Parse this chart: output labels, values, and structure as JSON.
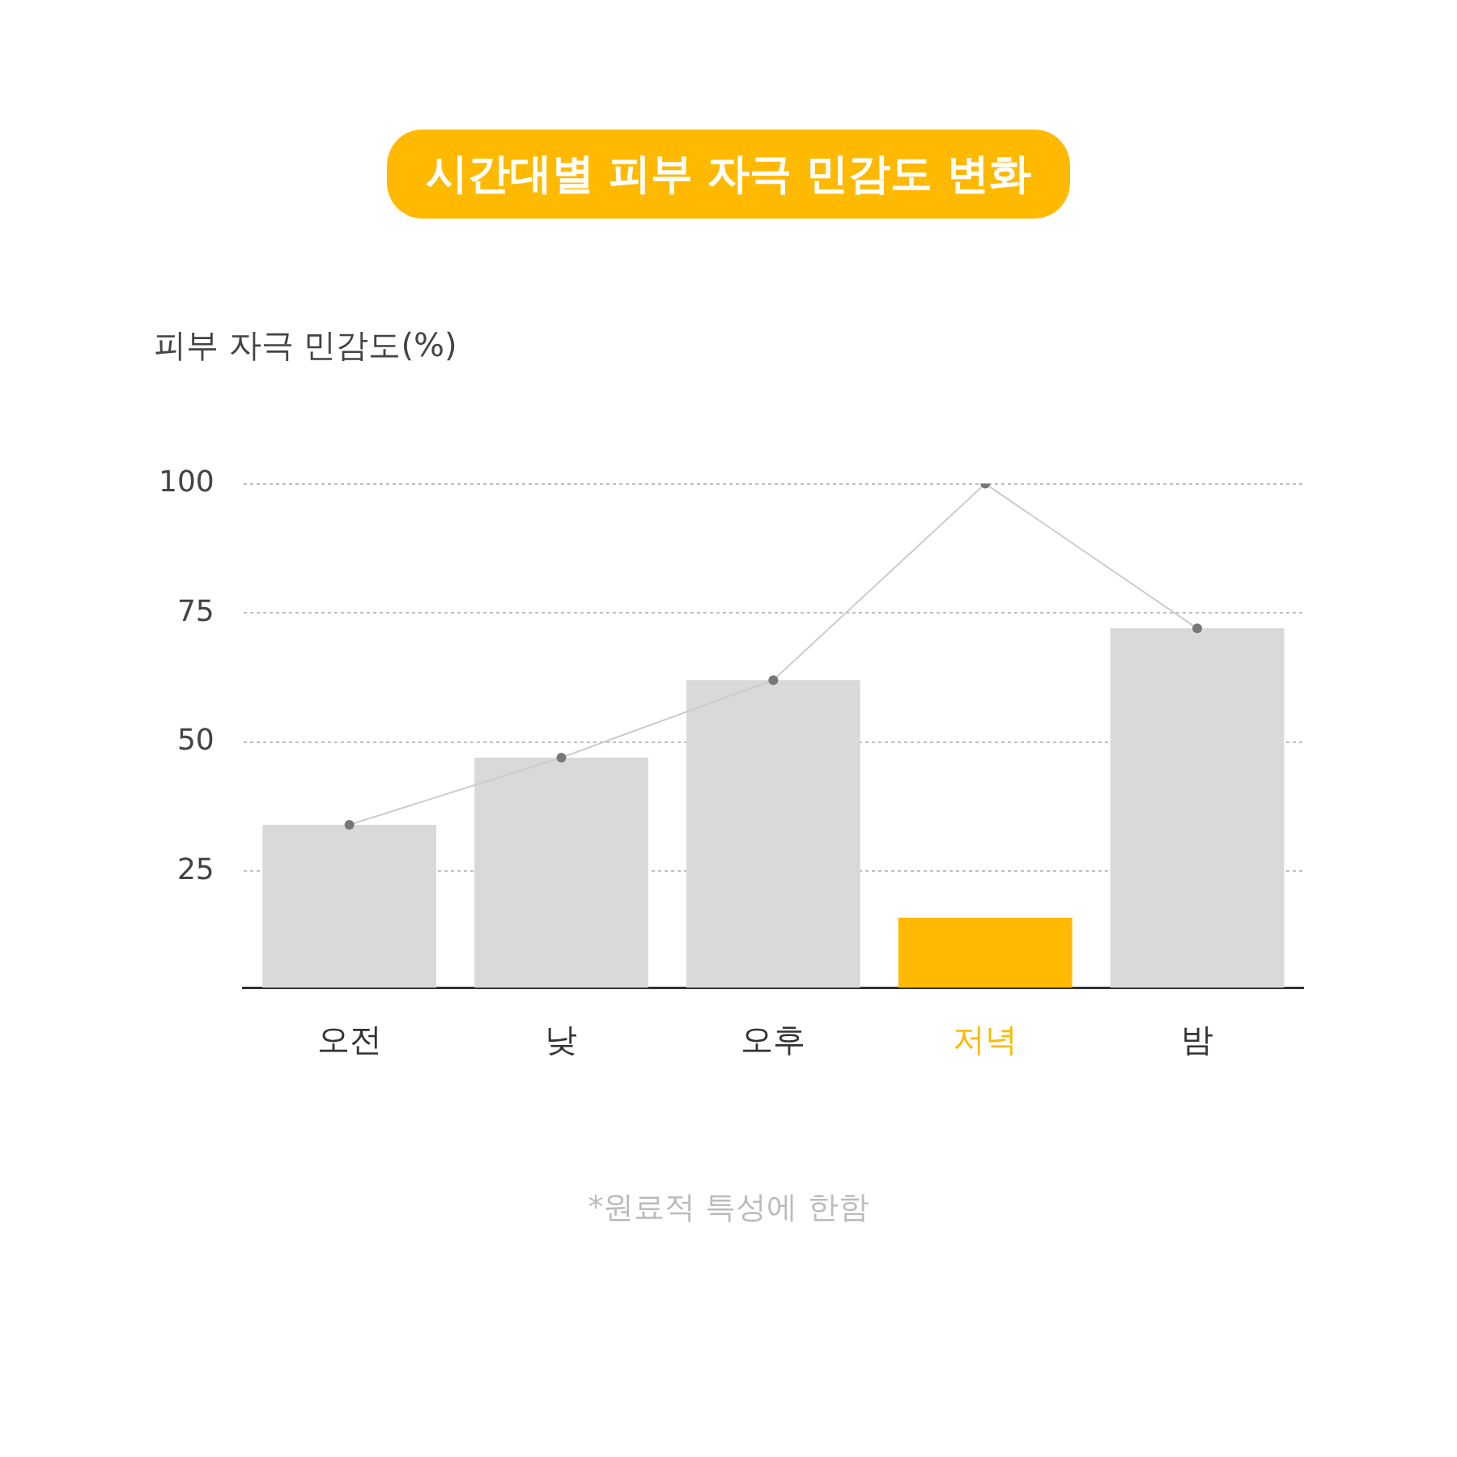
{
  "chart_data": {
    "type": "bar",
    "title": "시간대별 피부 자극 민감도 변화",
    "ylabel": "피부 자극 민감도(%)",
    "categories": [
      "오전",
      "낮",
      "오후",
      "저녁",
      "밤"
    ],
    "series": [
      {
        "colors": [
          "#d9d9d9",
          "#d9d9d9",
          "#d9d9d9",
          "#ffb900",
          "#d9d9d9"
        ],
        "values": [
          34,
          47,
          62,
          16,
          72
        ]
      },
      {
        "type": "line",
        "color": "#cccccc",
        "marker": "circle",
        "values": [
          34,
          47,
          62,
          100,
          72
        ]
      }
    ],
    "ylim": [
      2.5,
      100
    ],
    "yticks": [
      25,
      50,
      75,
      100
    ],
    "grid": "y",
    "annotations": [
      "*원료적 특성에 한함"
    ]
  }
}
